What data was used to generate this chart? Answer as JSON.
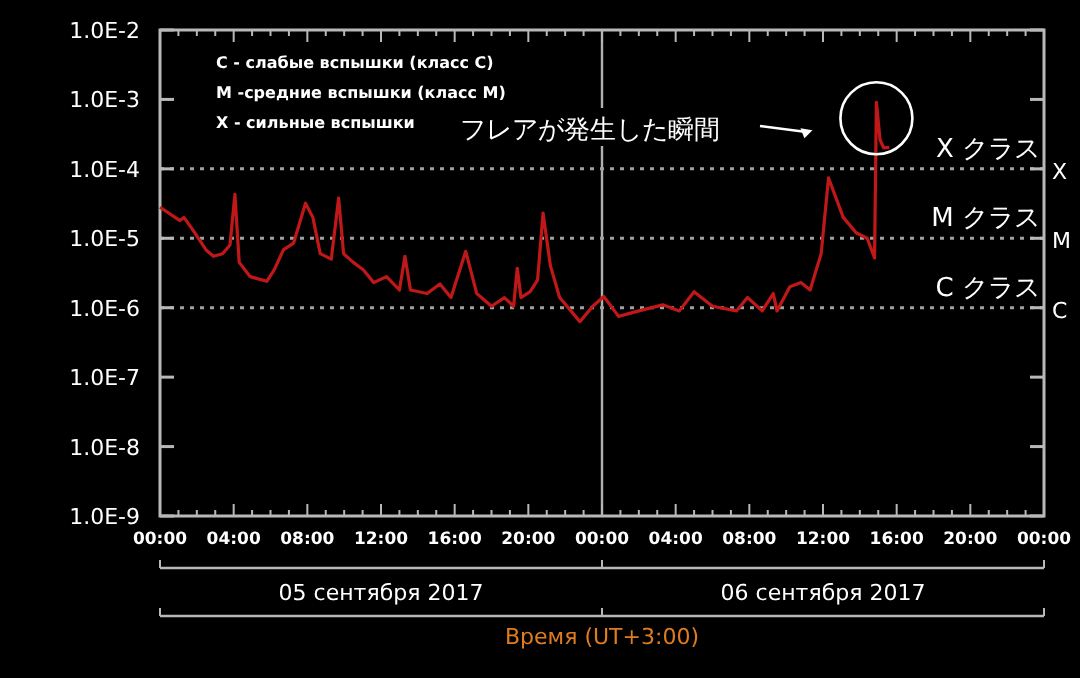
{
  "chart_data": {
    "type": "line",
    "xlabel": "Время (UT+3:00)",
    "log": "y",
    "grid": false,
    "marker": "none",
    "line_style": "solid",
    "xlim": [
      "2017-09-05T00:00",
      "2017-09-07T00:00"
    ],
    "xticks": [
      {
        "value": "2017-09-05T00:00",
        "label": "00:00"
      },
      {
        "value": "2017-09-05T04:00",
        "label": "04:00"
      },
      {
        "value": "2017-09-05T08:00",
        "label": "08:00"
      },
      {
        "value": "2017-09-05T12:00",
        "label": "12:00"
      },
      {
        "value": "2017-09-05T16:00",
        "label": "16:00"
      },
      {
        "value": "2017-09-05T20:00",
        "label": "20:00"
      },
      {
        "value": "2017-09-06T00:00",
        "label": "00:00"
      },
      {
        "value": "2017-09-06T04:00",
        "label": "04:00"
      },
      {
        "value": "2017-09-06T08:00",
        "label": "08:00"
      },
      {
        "value": "2017-09-06T12:00",
        "label": "12:00"
      },
      {
        "value": "2017-09-06T16:00",
        "label": "16:00"
      },
      {
        "value": "2017-09-06T20:00",
        "label": "20:00"
      },
      {
        "value": "2017-09-07T00:00",
        "label": "00:00"
      }
    ],
    "ylim": [
      1e-09,
      0.01
    ],
    "yticks": [
      {
        "value": 1e-09,
        "label": "1.0E-9"
      },
      {
        "value": 1e-08,
        "label": "1.0E-8"
      },
      {
        "value": 1e-07,
        "label": "1.0E-7"
      },
      {
        "value": 1e-06,
        "label": "1.0E-6"
      },
      {
        "value": 1e-05,
        "label": "1.0E-5"
      },
      {
        "value": 0.0001,
        "label": "1.0E-4"
      },
      {
        "value": 0.001,
        "label": "1.0E-3"
      },
      {
        "value": 0.01,
        "label": "1.0E-2"
      }
    ],
    "ref_lines": [
      {
        "axis": "x",
        "value": "2017-09-06T00:00",
        "color": "#b0b0b0",
        "line_style": "solid"
      },
      {
        "axis": "y",
        "value": 0.0001,
        "label": "X クラス",
        "color": "#a0a0a0",
        "line_style": "dotted"
      },
      {
        "axis": "y",
        "value": 1e-05,
        "label": "M クラス",
        "color": "#a0a0a0",
        "line_style": "dotted"
      },
      {
        "axis": "y",
        "value": 1e-06,
        "label": "C クラス",
        "color": "#a0a0a0",
        "line_style": "dotted"
      }
    ],
    "annotations": [
      "C - слабые вспышки (класс C)",
      "M -средние вспышки (класс M)",
      "X - сильные вспышки",
      "フレアが発生した瞬間",
      "05 сентября 2017",
      "06 сентября 2017",
      {
        "text": "X",
        "x": "2017-09-07T00:00",
        "y": 0.0001
      },
      {
        "text": "M",
        "x": "2017-09-07T00:00",
        "y": 1e-05
      },
      {
        "text": "C",
        "x": "2017-09-07T00:00",
        "y": 1e-06
      }
    ],
    "series": [
      {
        "color": "#c01818",
        "x": [
          "2017-09-05T00:00",
          "2017-09-05T01:05",
          "2017-09-05T01:18",
          "2017-09-05T01:48",
          "2017-09-05T02:30",
          "2017-09-05T02:54",
          "2017-09-05T03:24",
          "2017-09-05T03:48",
          "2017-09-05T04:04",
          "2017-09-05T04:18",
          "2017-09-05T04:54",
          "2017-09-05T05:48",
          "2017-09-05T06:12",
          "2017-09-05T06:42",
          "2017-09-05T07:15",
          "2017-09-05T07:54",
          "2017-09-05T08:18",
          "2017-09-05T08:42",
          "2017-09-05T09:18",
          "2017-09-05T09:42",
          "2017-09-05T09:58",
          "2017-09-05T10:30",
          "2017-09-05T11:03",
          "2017-09-05T11:36",
          "2017-09-05T12:18",
          "2017-09-05T13:00",
          "2017-09-05T13:18",
          "2017-09-05T13:36",
          "2017-09-05T14:30",
          "2017-09-05T15:12",
          "2017-09-05T15:48",
          "2017-09-05T16:36",
          "2017-09-05T17:12",
          "2017-09-05T18:00",
          "2017-09-05T18:42",
          "2017-09-05T19:12",
          "2017-09-05T19:24",
          "2017-09-05T19:36",
          "2017-09-05T20:06",
          "2017-09-05T20:30",
          "2017-09-05T20:48",
          "2017-09-05T21:12",
          "2017-09-05T21:42",
          "2017-09-05T22:48",
          "2017-09-05T23:30",
          "2017-09-06T00:06",
          "2017-09-06T00:54",
          "2017-09-06T02:00",
          "2017-09-06T03:18",
          "2017-09-06T04:12",
          "2017-09-06T05:00",
          "2017-09-06T06:00",
          "2017-09-06T07:18",
          "2017-09-06T07:54",
          "2017-09-06T08:42",
          "2017-09-06T09:18",
          "2017-09-06T09:30",
          "2017-09-06T10:12",
          "2017-09-06T10:48",
          "2017-09-06T11:18",
          "2017-09-06T11:54",
          "2017-09-06T12:18",
          "2017-09-06T13:06",
          "2017-09-06T13:48",
          "2017-09-06T14:24",
          "2017-09-06T14:48",
          "2017-09-06T14:54",
          "2017-09-06T15:06",
          "2017-09-06T15:18",
          "2017-09-06T15:36"
        ],
        "values": [
          2.8e-05,
          1.8e-05,
          2e-05,
          1.3e-05,
          6.8e-06,
          5.5e-06,
          6e-06,
          8e-06,
          4.3e-05,
          4.5e-06,
          2.8e-06,
          2.4e-06,
          3.5e-06,
          6.8e-06,
          8.5e-06,
          3.2e-05,
          2e-05,
          6e-06,
          5e-06,
          3.8e-05,
          6e-06,
          4.5e-06,
          3.5e-06,
          2.3e-06,
          2.8e-06,
          1.8e-06,
          5.5e-06,
          1.8e-06,
          1.6e-06,
          2.2e-06,
          1.4e-06,
          6.5e-06,
          1.6e-06,
          1.05e-06,
          1.4e-06,
          1.05e-06,
          3.7e-06,
          1.4e-06,
          1.7e-06,
          2.5e-06,
          2.3e-05,
          4e-06,
          1.4e-06,
          6.3e-07,
          1.05e-06,
          1.45e-06,
          7.5e-07,
          9e-07,
          1.1e-06,
          9e-07,
          1.7e-06,
          1.05e-06,
          9e-07,
          1.4e-06,
          9e-07,
          1.6e-06,
          9e-07,
          2e-06,
          2.3e-06,
          1.8e-06,
          6e-06,
          7.4e-05,
          2e-05,
          1.2e-05,
          1e-05,
          5.2e-06,
          0.00091,
          0.00026,
          0.0002,
          0.000205
        ]
      }
    ]
  }
}
